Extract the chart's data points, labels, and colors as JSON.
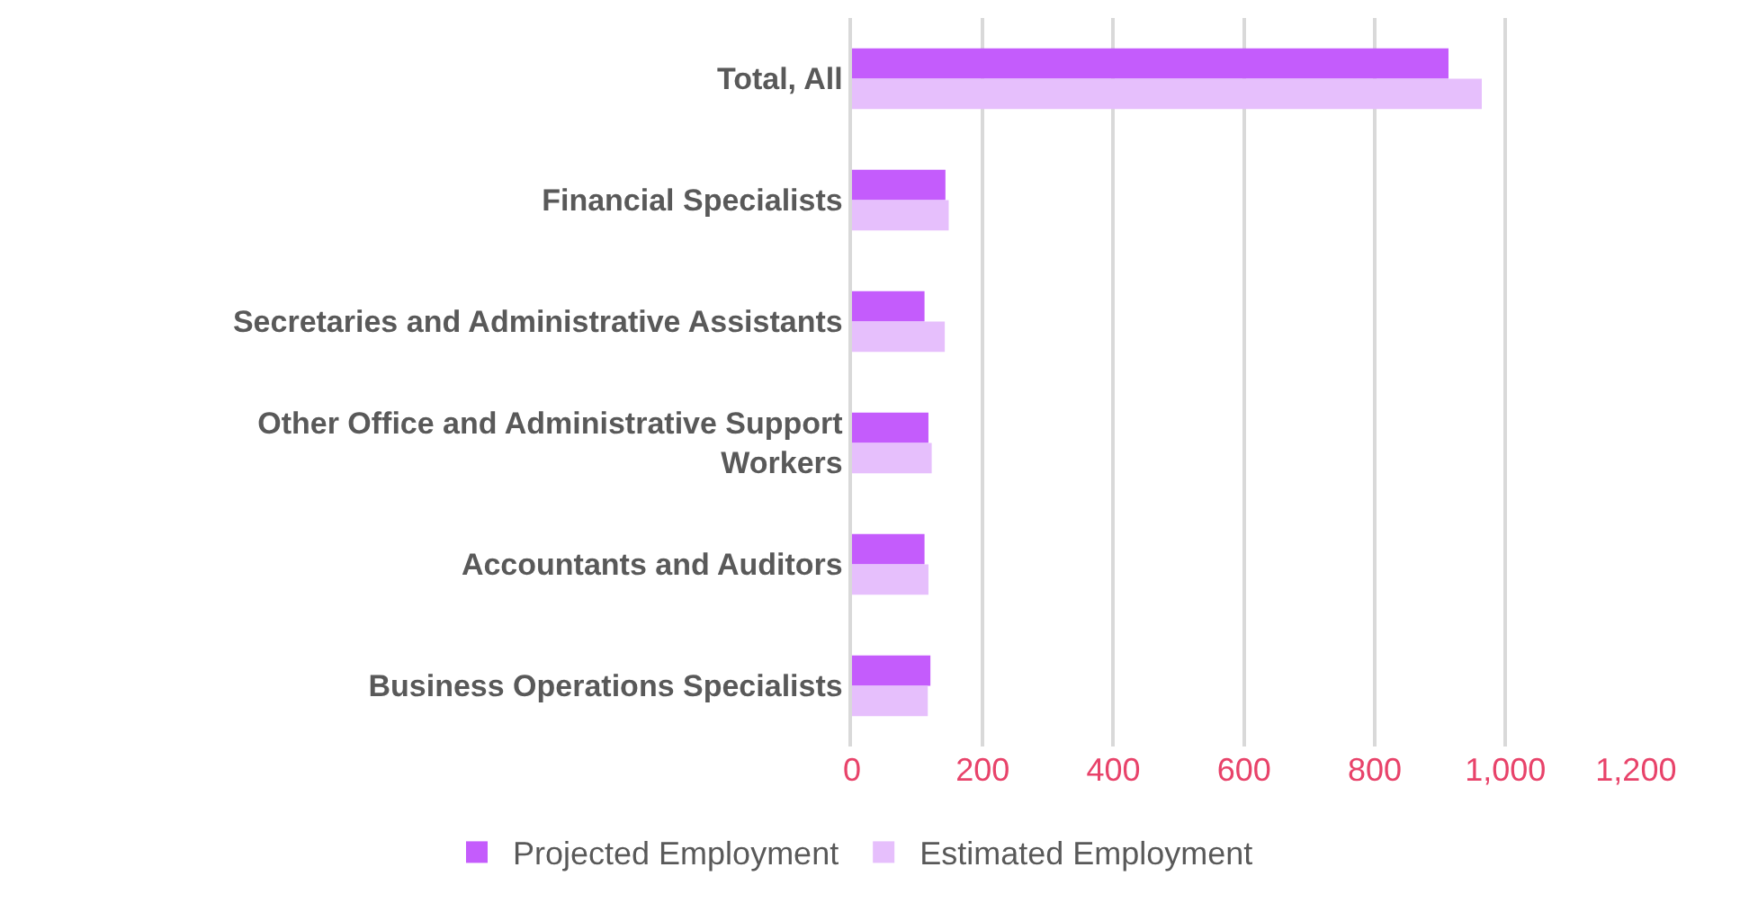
{
  "chart_data": {
    "type": "bar",
    "orientation": "horizontal",
    "categories": [
      "Total, All",
      "Financial Specialists",
      "Secretaries and Administrative Assistants",
      "Other Office and Administrative Support Workers",
      "Accountants and Auditors",
      "Business Operations Specialists"
    ],
    "series": [
      {
        "name": "Projected Employment",
        "color": "#c45cfc",
        "values": [
          913,
          143,
          111,
          117,
          111,
          120
        ]
      },
      {
        "name": "Estimated Employment",
        "color": "#e6bffc",
        "values": [
          964,
          148,
          142,
          122,
          117,
          116
        ]
      }
    ],
    "xlim": [
      0,
      1200
    ],
    "xticks": [
      0,
      200,
      400,
      600,
      800,
      {
        "value": 1000,
        "label": "1,000"
      },
      {
        "value": 1200,
        "label": "1,200"
      }
    ],
    "grid": "x",
    "legend": "bottom"
  }
}
